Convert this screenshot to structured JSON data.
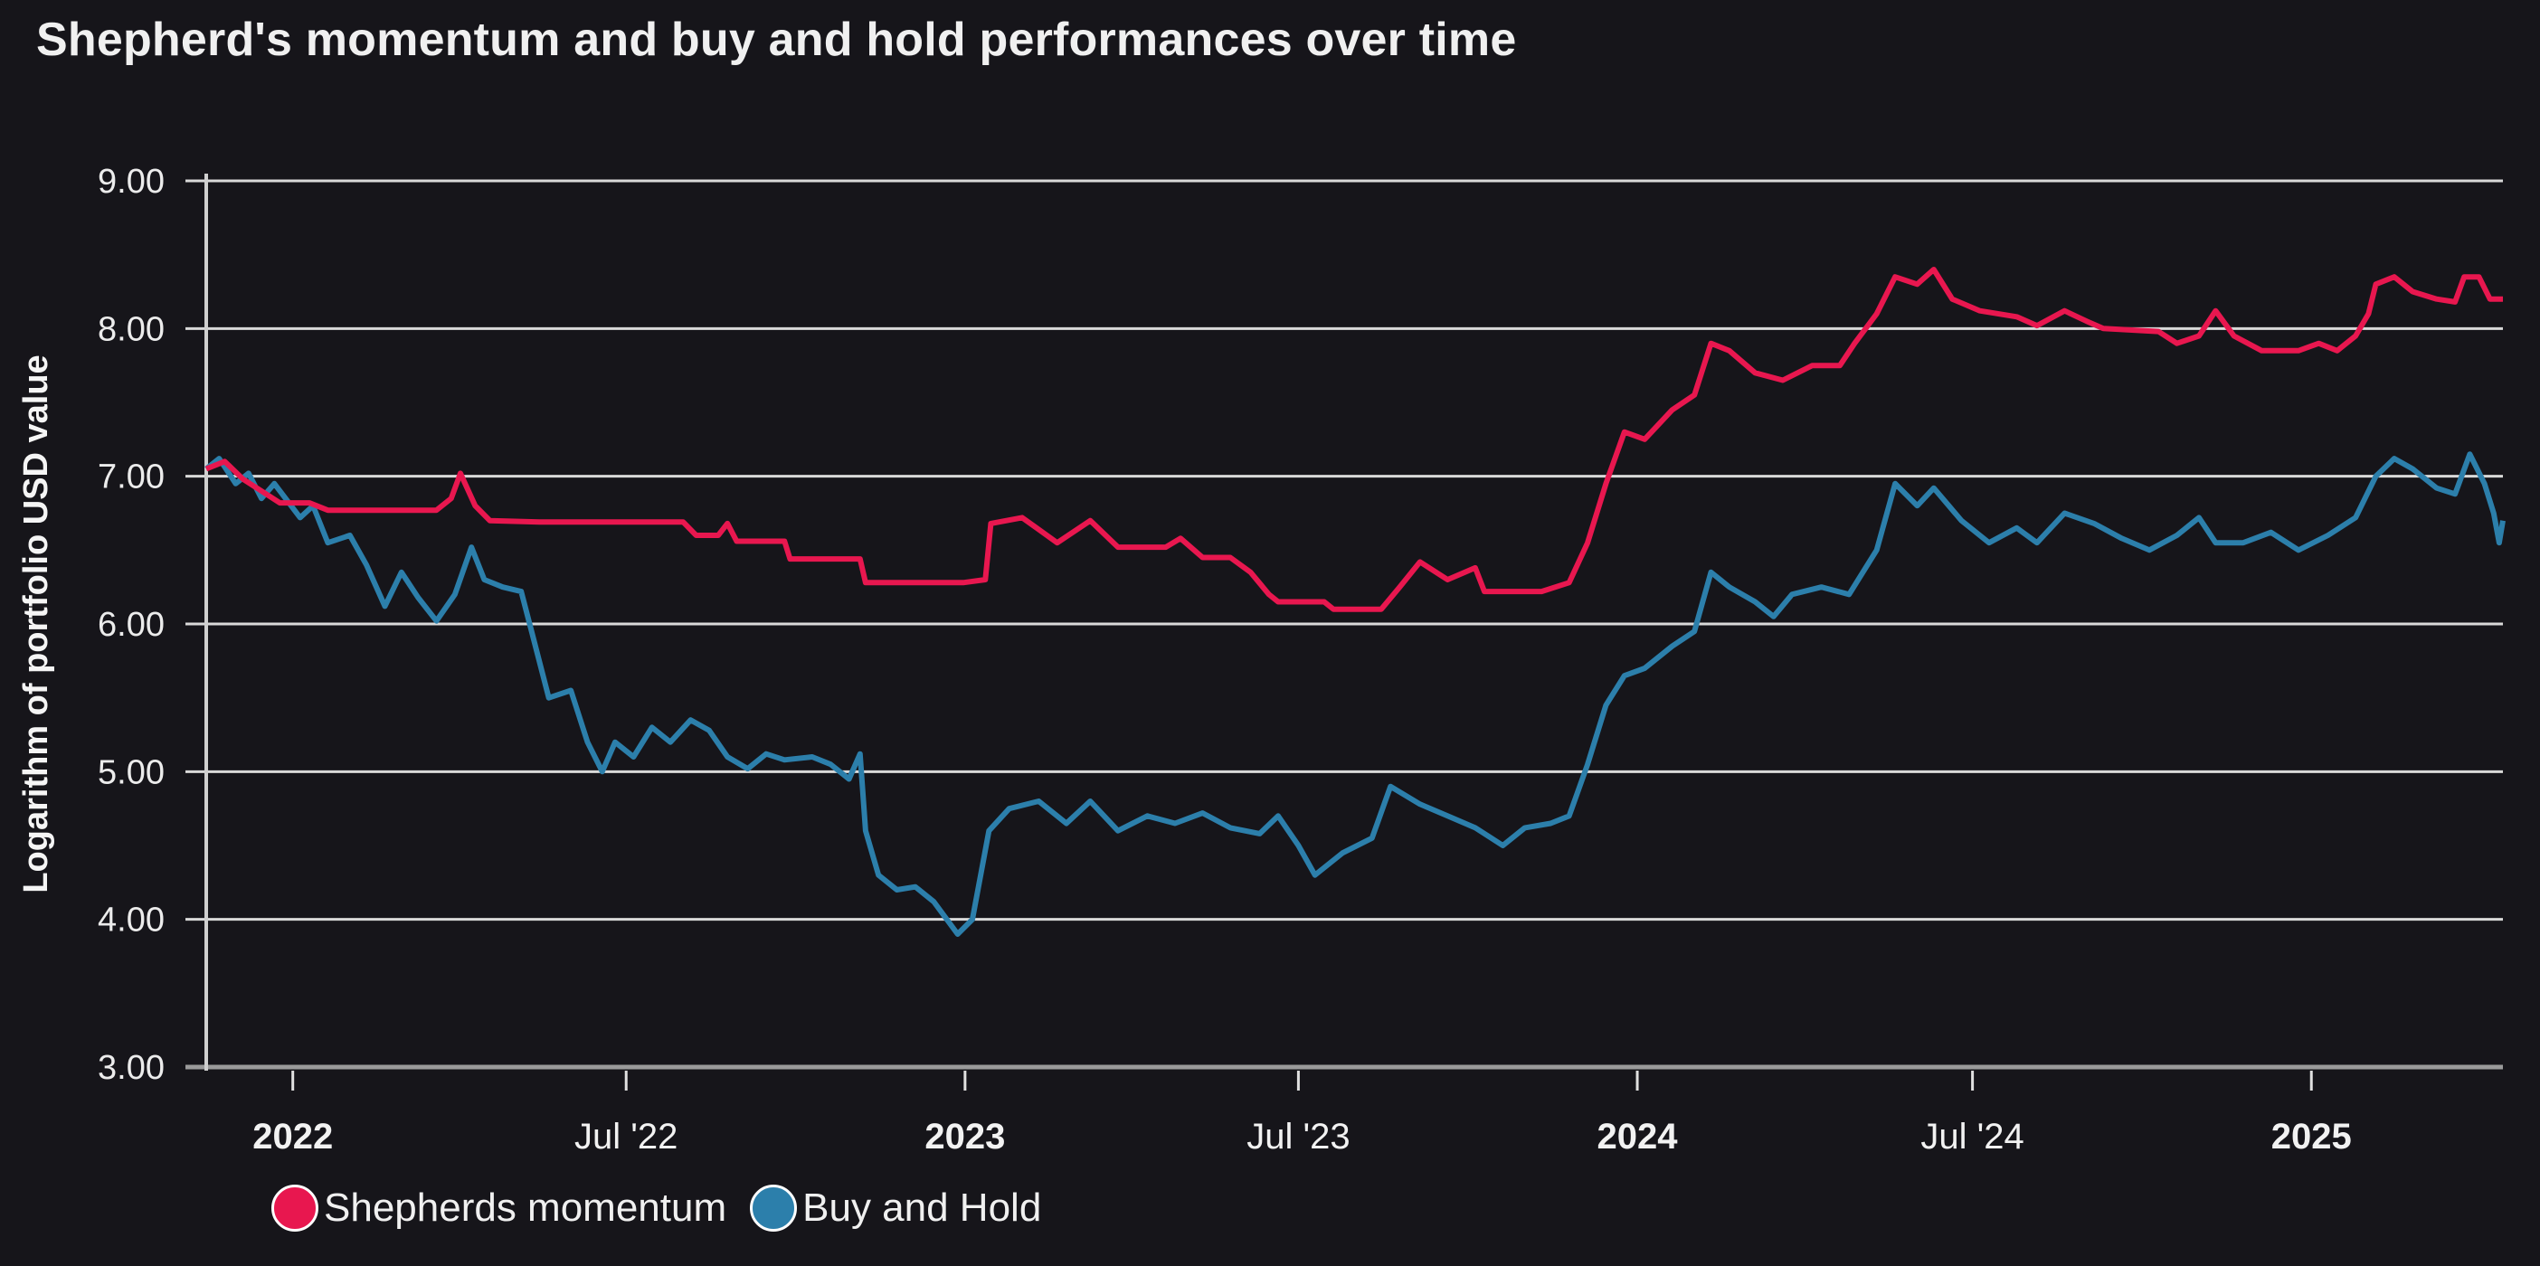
{
  "chart_data": {
    "type": "line",
    "title": "Shepherd's momentum and buy and hold performances over time",
    "xlabel": "",
    "ylabel": "Logarithm of portfolio USD value",
    "ylim": [
      3.0,
      9.0
    ],
    "xlim": [
      "2021-11-15",
      "2025-04-15"
    ],
    "grid": true,
    "legend_position": "bottom-left",
    "y_ticks": [
      "3.00",
      "4.00",
      "5.00",
      "6.00",
      "7.00",
      "8.00",
      "9.00"
    ],
    "x_ticks": [
      {
        "date": "2022-01-01",
        "label": "2022",
        "major": true
      },
      {
        "date": "2022-07-01",
        "label": "Jul '22",
        "major": false
      },
      {
        "date": "2023-01-01",
        "label": "2023",
        "major": true
      },
      {
        "date": "2023-07-01",
        "label": "Jul '23",
        "major": false
      },
      {
        "date": "2024-01-01",
        "label": "2024",
        "major": true
      },
      {
        "date": "2024-07-01",
        "label": "Jul '24",
        "major": false
      },
      {
        "date": "2025-01-01",
        "label": "2025",
        "major": true
      }
    ],
    "series": [
      {
        "name": "Shepherds momentum",
        "color": "#e8174f",
        "points": [
          [
            "2021-11-15",
            7.05
          ],
          [
            "2021-11-25",
            7.1
          ],
          [
            "2021-12-05",
            6.98
          ],
          [
            "2021-12-15",
            6.9
          ],
          [
            "2021-12-25",
            6.82
          ],
          [
            "2022-01-10",
            6.82
          ],
          [
            "2022-01-20",
            6.77
          ],
          [
            "2022-02-15",
            6.77
          ],
          [
            "2022-03-20",
            6.77
          ],
          [
            "2022-03-28",
            6.85
          ],
          [
            "2022-04-02",
            7.02
          ],
          [
            "2022-04-10",
            6.8
          ],
          [
            "2022-04-18",
            6.7
          ],
          [
            "2022-05-15",
            6.69
          ],
          [
            "2022-07-15",
            6.69
          ],
          [
            "2022-08-01",
            6.69
          ],
          [
            "2022-08-08",
            6.6
          ],
          [
            "2022-08-20",
            6.6
          ],
          [
            "2022-08-25",
            6.68
          ],
          [
            "2022-08-30",
            6.56
          ],
          [
            "2022-09-25",
            6.56
          ],
          [
            "2022-09-28",
            6.44
          ],
          [
            "2022-11-05",
            6.44
          ],
          [
            "2022-11-08",
            6.28
          ],
          [
            "2022-12-31",
            6.28
          ],
          [
            "2023-01-12",
            6.3
          ],
          [
            "2023-01-15",
            6.68
          ],
          [
            "2023-02-01",
            6.72
          ],
          [
            "2023-02-20",
            6.55
          ],
          [
            "2023-03-10",
            6.7
          ],
          [
            "2023-03-25",
            6.52
          ],
          [
            "2023-04-20",
            6.52
          ],
          [
            "2023-04-28",
            6.58
          ],
          [
            "2023-05-10",
            6.45
          ],
          [
            "2023-05-25",
            6.45
          ],
          [
            "2023-06-05",
            6.35
          ],
          [
            "2023-06-15",
            6.2
          ],
          [
            "2023-06-20",
            6.15
          ],
          [
            "2023-07-15",
            6.15
          ],
          [
            "2023-07-20",
            6.1
          ],
          [
            "2023-08-15",
            6.1
          ],
          [
            "2023-08-25",
            6.25
          ],
          [
            "2023-09-05",
            6.42
          ],
          [
            "2023-09-20",
            6.3
          ],
          [
            "2023-10-05",
            6.38
          ],
          [
            "2023-10-10",
            6.22
          ],
          [
            "2023-11-10",
            6.22
          ],
          [
            "2023-11-25",
            6.28
          ],
          [
            "2023-12-05",
            6.55
          ],
          [
            "2023-12-15",
            6.95
          ],
          [
            "2023-12-25",
            7.3
          ],
          [
            "2024-01-05",
            7.25
          ],
          [
            "2024-01-20",
            7.45
          ],
          [
            "2024-02-01",
            7.55
          ],
          [
            "2024-02-10",
            7.9
          ],
          [
            "2024-02-20",
            7.85
          ],
          [
            "2024-03-05",
            7.7
          ],
          [
            "2024-03-20",
            7.65
          ],
          [
            "2024-04-05",
            7.75
          ],
          [
            "2024-04-20",
            7.75
          ],
          [
            "2024-04-28",
            7.9
          ],
          [
            "2024-05-10",
            8.1
          ],
          [
            "2024-05-20",
            8.35
          ],
          [
            "2024-06-01",
            8.3
          ],
          [
            "2024-06-10",
            8.4
          ],
          [
            "2024-06-20",
            8.2
          ],
          [
            "2024-07-05",
            8.12
          ],
          [
            "2024-07-25",
            8.08
          ],
          [
            "2024-08-05",
            8.02
          ],
          [
            "2024-08-20",
            8.12
          ],
          [
            "2024-09-01",
            8.05
          ],
          [
            "2024-09-10",
            8.0
          ],
          [
            "2024-10-10",
            7.98
          ],
          [
            "2024-10-20",
            7.9
          ],
          [
            "2024-11-01",
            7.95
          ],
          [
            "2024-11-10",
            8.12
          ],
          [
            "2024-11-20",
            7.95
          ],
          [
            "2024-12-05",
            7.85
          ],
          [
            "2024-12-25",
            7.85
          ],
          [
            "2025-01-05",
            7.9
          ],
          [
            "2025-01-15",
            7.85
          ],
          [
            "2025-01-25",
            7.95
          ],
          [
            "2025-02-01",
            8.1
          ],
          [
            "2025-02-05",
            8.3
          ],
          [
            "2025-02-15",
            8.35
          ],
          [
            "2025-02-25",
            8.25
          ],
          [
            "2025-03-10",
            8.2
          ],
          [
            "2025-03-20",
            8.18
          ],
          [
            "2025-03-25",
            8.35
          ],
          [
            "2025-04-02",
            8.35
          ],
          [
            "2025-04-08",
            8.2
          ],
          [
            "2025-04-15",
            8.2
          ]
        ]
      },
      {
        "name": "Buy and Hold",
        "color": "#2c7fab",
        "points": [
          [
            "2021-11-15",
            7.05
          ],
          [
            "2021-11-22",
            7.12
          ],
          [
            "2021-12-01",
            6.95
          ],
          [
            "2021-12-08",
            7.02
          ],
          [
            "2021-12-15",
            6.85
          ],
          [
            "2021-12-22",
            6.95
          ],
          [
            "2022-01-05",
            6.72
          ],
          [
            "2022-01-12",
            6.8
          ],
          [
            "2022-01-20",
            6.55
          ],
          [
            "2022-02-01",
            6.6
          ],
          [
            "2022-02-10",
            6.4
          ],
          [
            "2022-02-20",
            6.12
          ],
          [
            "2022-03-01",
            6.35
          ],
          [
            "2022-03-10",
            6.18
          ],
          [
            "2022-03-20",
            6.02
          ],
          [
            "2022-03-30",
            6.2
          ],
          [
            "2022-04-08",
            6.52
          ],
          [
            "2022-04-15",
            6.3
          ],
          [
            "2022-04-25",
            6.25
          ],
          [
            "2022-05-05",
            6.22
          ],
          [
            "2022-05-10",
            5.98
          ],
          [
            "2022-05-20",
            5.5
          ],
          [
            "2022-06-01",
            5.55
          ],
          [
            "2022-06-10",
            5.2
          ],
          [
            "2022-06-18",
            5.0
          ],
          [
            "2022-06-25",
            5.2
          ],
          [
            "2022-07-05",
            5.1
          ],
          [
            "2022-07-15",
            5.3
          ],
          [
            "2022-07-25",
            5.2
          ],
          [
            "2022-08-05",
            5.35
          ],
          [
            "2022-08-15",
            5.28
          ],
          [
            "2022-08-25",
            5.1
          ],
          [
            "2022-09-05",
            5.02
          ],
          [
            "2022-09-15",
            5.12
          ],
          [
            "2022-09-25",
            5.08
          ],
          [
            "2022-10-10",
            5.1
          ],
          [
            "2022-10-20",
            5.05
          ],
          [
            "2022-10-30",
            4.95
          ],
          [
            "2022-11-05",
            5.12
          ],
          [
            "2022-11-08",
            4.6
          ],
          [
            "2022-11-15",
            4.3
          ],
          [
            "2022-11-25",
            4.2
          ],
          [
            "2022-12-05",
            4.22
          ],
          [
            "2022-12-15",
            4.12
          ],
          [
            "2022-12-28",
            3.9
          ],
          [
            "2023-01-05",
            4.0
          ],
          [
            "2023-01-14",
            4.6
          ],
          [
            "2023-01-25",
            4.75
          ],
          [
            "2023-02-10",
            4.8
          ],
          [
            "2023-02-25",
            4.65
          ],
          [
            "2023-03-10",
            4.8
          ],
          [
            "2023-03-25",
            4.6
          ],
          [
            "2023-04-10",
            4.7
          ],
          [
            "2023-04-25",
            4.65
          ],
          [
            "2023-05-10",
            4.72
          ],
          [
            "2023-05-25",
            4.62
          ],
          [
            "2023-06-10",
            4.58
          ],
          [
            "2023-06-20",
            4.7
          ],
          [
            "2023-07-01",
            4.5
          ],
          [
            "2023-07-10",
            4.3
          ],
          [
            "2023-07-25",
            4.45
          ],
          [
            "2023-08-10",
            4.55
          ],
          [
            "2023-08-20",
            4.9
          ],
          [
            "2023-09-05",
            4.78
          ],
          [
            "2023-09-20",
            4.7
          ],
          [
            "2023-10-05",
            4.62
          ],
          [
            "2023-10-20",
            4.5
          ],
          [
            "2023-11-01",
            4.62
          ],
          [
            "2023-11-15",
            4.65
          ],
          [
            "2023-11-25",
            4.7
          ],
          [
            "2023-12-05",
            5.05
          ],
          [
            "2023-12-15",
            5.45
          ],
          [
            "2023-12-25",
            5.65
          ],
          [
            "2024-01-05",
            5.7
          ],
          [
            "2024-01-20",
            5.85
          ],
          [
            "2024-02-01",
            5.95
          ],
          [
            "2024-02-10",
            6.35
          ],
          [
            "2024-02-20",
            6.25
          ],
          [
            "2024-03-05",
            6.15
          ],
          [
            "2024-03-15",
            6.05
          ],
          [
            "2024-03-25",
            6.2
          ],
          [
            "2024-04-10",
            6.25
          ],
          [
            "2024-04-25",
            6.2
          ],
          [
            "2024-05-10",
            6.5
          ],
          [
            "2024-05-20",
            6.95
          ],
          [
            "2024-06-01",
            6.8
          ],
          [
            "2024-06-10",
            6.92
          ],
          [
            "2024-06-25",
            6.7
          ],
          [
            "2024-07-10",
            6.55
          ],
          [
            "2024-07-25",
            6.65
          ],
          [
            "2024-08-05",
            6.55
          ],
          [
            "2024-08-20",
            6.75
          ],
          [
            "2024-09-05",
            6.68
          ],
          [
            "2024-09-20",
            6.58
          ],
          [
            "2024-10-05",
            6.5
          ],
          [
            "2024-10-20",
            6.6
          ],
          [
            "2024-11-01",
            6.72
          ],
          [
            "2024-11-10",
            6.55
          ],
          [
            "2024-11-25",
            6.55
          ],
          [
            "2024-12-10",
            6.62
          ],
          [
            "2024-12-25",
            6.5
          ],
          [
            "2025-01-10",
            6.6
          ],
          [
            "2025-01-25",
            6.72
          ],
          [
            "2025-02-05",
            7.0
          ],
          [
            "2025-02-15",
            7.12
          ],
          [
            "2025-02-25",
            7.05
          ],
          [
            "2025-03-10",
            6.92
          ],
          [
            "2025-03-20",
            6.88
          ],
          [
            "2025-03-28",
            7.15
          ],
          [
            "2025-04-05",
            6.95
          ],
          [
            "2025-04-10",
            6.75
          ],
          [
            "2025-04-13",
            6.55
          ],
          [
            "2025-04-15",
            6.7
          ]
        ]
      }
    ]
  },
  "legend": {
    "items": [
      {
        "label": "Shepherds momentum",
        "color": "#e8174f"
      },
      {
        "label": "Buy and Hold",
        "color": "#2c7fab"
      }
    ]
  }
}
